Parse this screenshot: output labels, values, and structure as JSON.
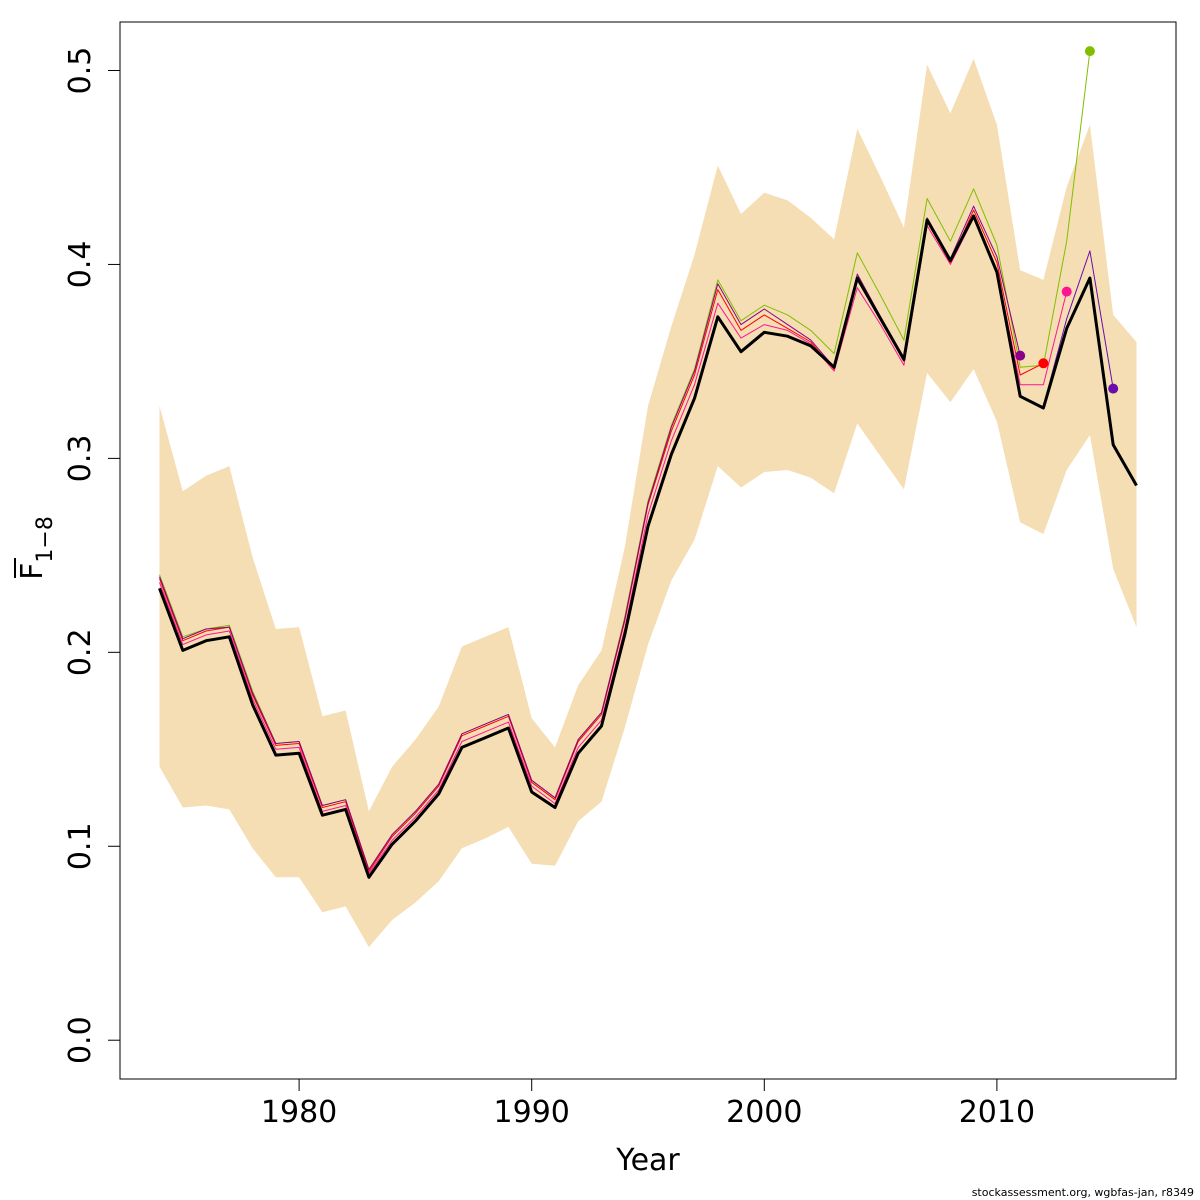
{
  "chart_data": {
    "type": "line",
    "xlabel": "Year",
    "ylabel": {
      "main": "F",
      "subscript": "1−8"
    },
    "xlim": [
      1972.3,
      2017.7
    ],
    "ylim": [
      -0.02,
      0.525
    ],
    "xticks": [
      1980,
      1990,
      2000,
      2010
    ],
    "xtick_labels": [
      "1980",
      "1990",
      "2000",
      "2010"
    ],
    "yticks": [
      0.0,
      0.1,
      0.2,
      0.3,
      0.4,
      0.5
    ],
    "ytick_labels": [
      "0.0",
      "0.1",
      "0.2",
      "0.3",
      "0.4",
      "0.5"
    ],
    "credit": "stockassessment.org, wgbfas-jan, r8349",
    "confidence_band": {
      "color": "#f5deb3",
      "x": [
        1974,
        1975,
        1976,
        1977,
        1978,
        1979,
        1980,
        1981,
        1982,
        1983,
        1984,
        1985,
        1986,
        1987,
        1988,
        1989,
        1990,
        1991,
        1992,
        1993,
        1994,
        1995,
        1996,
        1997,
        1998,
        1999,
        2000,
        2001,
        2002,
        2003,
        2004,
        2005,
        2006,
        2007,
        2008,
        2009,
        2010,
        2011,
        2012,
        2013,
        2014,
        2015,
        2016
      ],
      "upper": [
        0.327,
        0.283,
        0.291,
        0.296,
        0.249,
        0.212,
        0.213,
        0.167,
        0.17,
        0.118,
        0.141,
        0.155,
        0.172,
        0.203,
        0.208,
        0.213,
        0.166,
        0.151,
        0.183,
        0.201,
        0.254,
        0.327,
        0.368,
        0.405,
        0.451,
        0.426,
        0.437,
        0.433,
        0.424,
        0.413,
        0.47,
        0.445,
        0.419,
        0.503,
        0.478,
        0.506,
        0.472,
        0.397,
        0.392,
        0.44,
        0.472,
        0.374,
        0.36
      ],
      "lower": [
        0.141,
        0.12,
        0.121,
        0.119,
        0.099,
        0.084,
        0.084,
        0.066,
        0.069,
        0.048,
        0.062,
        0.071,
        0.082,
        0.099,
        0.104,
        0.11,
        0.091,
        0.09,
        0.113,
        0.123,
        0.161,
        0.204,
        0.237,
        0.258,
        0.296,
        0.285,
        0.293,
        0.294,
        0.29,
        0.282,
        0.318,
        0.301,
        0.284,
        0.344,
        0.329,
        0.346,
        0.319,
        0.267,
        0.261,
        0.294,
        0.312,
        0.243,
        0.213
      ]
    },
    "series": [
      {
        "color": "#000000",
        "width": 3,
        "x": [
          1974,
          1975,
          1976,
          1977,
          1978,
          1979,
          1980,
          1981,
          1982,
          1983,
          1984,
          1985,
          1986,
          1987,
          1988,
          1989,
          1990,
          1991,
          1992,
          1993,
          1994,
          1995,
          1996,
          1997,
          1998,
          1999,
          2000,
          2001,
          2002,
          2003,
          2004,
          2005,
          2006,
          2007,
          2008,
          2009,
          2010,
          2011,
          2012,
          2013,
          2014,
          2015,
          2016
        ],
        "values": [
          0.233,
          0.201,
          0.206,
          0.208,
          0.173,
          0.147,
          0.148,
          0.116,
          0.119,
          0.084,
          0.101,
          0.113,
          0.127,
          0.151,
          0.156,
          0.161,
          0.128,
          0.12,
          0.148,
          0.162,
          0.209,
          0.265,
          0.302,
          0.331,
          0.373,
          0.355,
          0.365,
          0.363,
          0.358,
          0.347,
          0.393,
          0.372,
          0.351,
          0.423,
          0.402,
          0.425,
          0.396,
          0.332,
          0.326,
          0.367,
          0.393,
          0.307,
          0.286
        ]
      },
      {
        "color": "#7fbf00",
        "width": 1,
        "x": [
          1974,
          1975,
          1976,
          1977,
          1978,
          1979,
          1980,
          1981,
          1982,
          1983,
          1984,
          1985,
          1986,
          1987,
          1988,
          1989,
          1990,
          1991,
          1992,
          1993,
          1994,
          1995,
          1996,
          1997,
          1998,
          1999,
          2000,
          2001,
          2002,
          2003,
          2004,
          2005,
          2006,
          2007,
          2008,
          2009,
          2010,
          2011,
          2012,
          2013,
          2014
        ],
        "values": [
          0.24,
          0.208,
          0.212,
          0.214,
          0.18,
          0.153,
          0.154,
          0.121,
          0.124,
          0.088,
          0.106,
          0.118,
          0.132,
          0.158,
          0.163,
          0.168,
          0.134,
          0.125,
          0.155,
          0.169,
          0.218,
          0.278,
          0.317,
          0.346,
          0.392,
          0.371,
          0.379,
          0.374,
          0.366,
          0.354,
          0.406,
          0.384,
          0.361,
          0.434,
          0.412,
          0.439,
          0.41,
          0.347,
          0.348,
          0.412,
          0.51
        ],
        "end_point": {
          "x": 2014,
          "y": 0.51
        }
      },
      {
        "color": "#ff1493",
        "width": 1,
        "x": [
          1974,
          1975,
          1976,
          1977,
          1978,
          1979,
          1980,
          1981,
          1982,
          1983,
          1984,
          1985,
          1986,
          1987,
          1988,
          1989,
          1990,
          1991,
          1992,
          1993,
          1994,
          1995,
          1996,
          1997,
          1998,
          1999,
          2000,
          2001,
          2002,
          2003,
          2004,
          2005,
          2006,
          2007,
          2008,
          2009,
          2010,
          2011,
          2012,
          2013
        ],
        "values": [
          0.236,
          0.204,
          0.209,
          0.211,
          0.176,
          0.15,
          0.151,
          0.118,
          0.121,
          0.086,
          0.103,
          0.115,
          0.129,
          0.154,
          0.159,
          0.164,
          0.131,
          0.122,
          0.151,
          0.165,
          0.212,
          0.271,
          0.309,
          0.338,
          0.38,
          0.362,
          0.369,
          0.366,
          0.359,
          0.345,
          0.388,
          0.369,
          0.348,
          0.42,
          0.4,
          0.424,
          0.397,
          0.338,
          0.338,
          0.386
        ],
        "end_point": {
          "x": 2013,
          "y": 0.386
        }
      },
      {
        "color": "#ff0000",
        "width": 1,
        "x": [
          1974,
          1975,
          1976,
          1977,
          1978,
          1979,
          1980,
          1981,
          1982,
          1983,
          1984,
          1985,
          1986,
          1987,
          1988,
          1989,
          1990,
          1991,
          1992,
          1993,
          1994,
          1995,
          1996,
          1997,
          1998,
          1999,
          2000,
          2001,
          2002,
          2003,
          2004,
          2005,
          2006,
          2007,
          2008,
          2009,
          2010,
          2011,
          2012
        ],
        "values": [
          0.238,
          0.206,
          0.211,
          0.213,
          0.178,
          0.152,
          0.153,
          0.12,
          0.123,
          0.087,
          0.105,
          0.117,
          0.131,
          0.157,
          0.162,
          0.167,
          0.133,
          0.124,
          0.154,
          0.168,
          0.216,
          0.276,
          0.314,
          0.343,
          0.387,
          0.366,
          0.374,
          0.367,
          0.36,
          0.346,
          0.392,
          0.372,
          0.35,
          0.422,
          0.401,
          0.428,
          0.401,
          0.343,
          0.349
        ],
        "end_point": {
          "x": 2012,
          "y": 0.349
        }
      },
      {
        "color": "#8b008b",
        "width": 1,
        "x": [
          1974,
          1975,
          1976,
          1977,
          1978,
          1979,
          1980,
          1981,
          1982,
          1983,
          1984,
          1985,
          1986,
          1987,
          1988,
          1989,
          1990,
          1991,
          1992,
          1993,
          1994,
          1995,
          1996,
          1997,
          1998,
          1999,
          2000,
          2001,
          2002,
          2003,
          2004,
          2005,
          2006,
          2007,
          2008,
          2009,
          2010,
          2011
        ],
        "values": [
          0.239,
          0.207,
          0.212,
          0.213,
          0.179,
          0.153,
          0.154,
          0.121,
          0.124,
          0.088,
          0.106,
          0.118,
          0.132,
          0.158,
          0.163,
          0.168,
          0.134,
          0.125,
          0.155,
          0.169,
          0.217,
          0.277,
          0.316,
          0.345,
          0.39,
          0.369,
          0.377,
          0.369,
          0.361,
          0.347,
          0.395,
          0.373,
          0.352,
          0.424,
          0.403,
          0.43,
          0.404,
          0.353
        ],
        "end_point": {
          "x": 2011,
          "y": 0.353
        }
      },
      {
        "color": "#6a0dad",
        "width": 1,
        "x": [
          2012,
          2013,
          2014,
          2015
        ],
        "values": [
          0.327,
          0.372,
          0.407,
          0.336
        ],
        "end_point": {
          "x": 2015,
          "y": 0.336
        }
      }
    ]
  }
}
